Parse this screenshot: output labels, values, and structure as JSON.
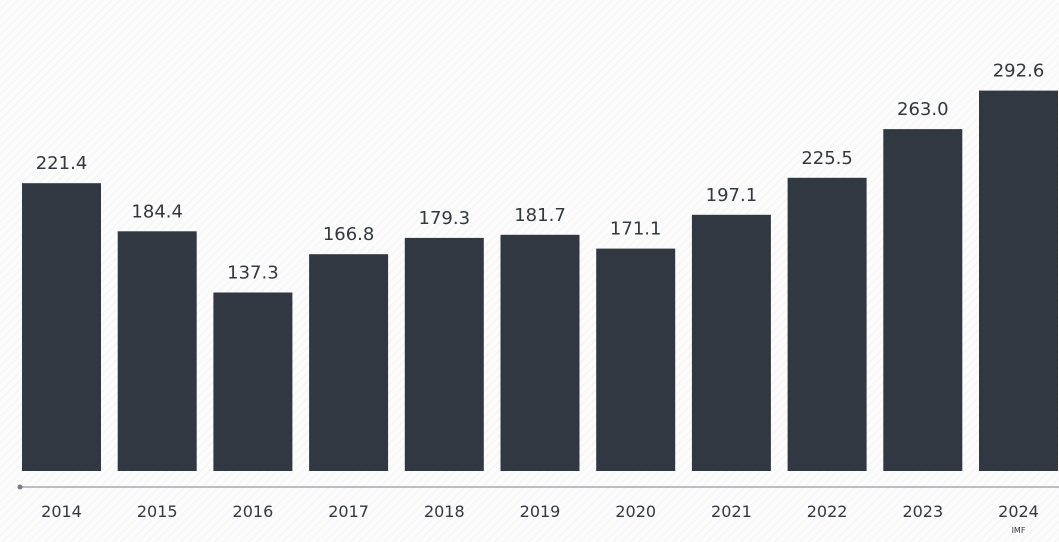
{
  "chart_data": {
    "type": "bar",
    "categories": [
      "2014",
      "2015",
      "2016",
      "2017",
      "2018",
      "2019",
      "2020",
      "2021",
      "2022",
      "2023",
      "2024"
    ],
    "values": [
      221.4,
      184.4,
      137.3,
      166.8,
      179.3,
      181.7,
      171.1,
      197.1,
      225.5,
      263.0,
      292.6
    ],
    "value_labels": [
      "221.4",
      "184.4",
      "137.3",
      "166.8",
      "179.3",
      "181.7",
      "171.1",
      "197.1",
      "225.5",
      "263.0",
      "292.6"
    ],
    "notes": {
      "2024": "IMF"
    },
    "title": "",
    "xlabel": "",
    "ylabel": "",
    "ylim": [
      0,
      300
    ],
    "grid": false,
    "legend": "none",
    "bar_color": "#323841",
    "text_color": "#333840",
    "axis_color": "#7a7f86"
  }
}
